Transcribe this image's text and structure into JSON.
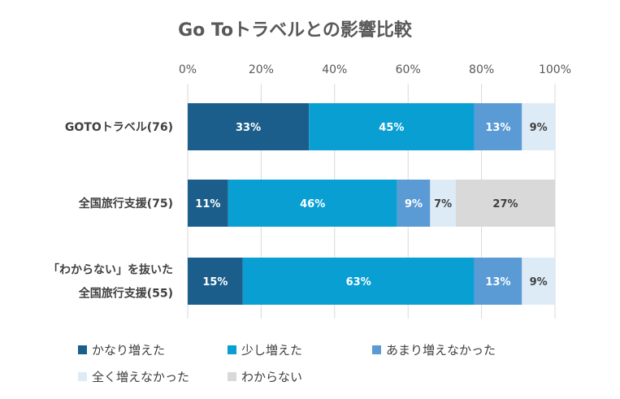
{
  "chart_data": {
    "type": "bar",
    "orientation": "horizontal",
    "stacked": true,
    "title": "Go Toトラベルとの影響比較",
    "xlabel": "",
    "ylabel": "",
    "xlim": [
      0,
      100
    ],
    "x_ticks": [
      "0%",
      "20%",
      "40%",
      "60%",
      "80%",
      "100%"
    ],
    "grid": true,
    "legend_position": "bottom",
    "categories": [
      [
        "GOTOトラベル(76)"
      ],
      [
        "全国旅行支援(75)"
      ],
      [
        "「わからない」を抜いた",
        "全国旅行支援(55)"
      ]
    ],
    "series": [
      {
        "name": "かなり増えた",
        "color": "#1b5e8c",
        "label_color": "#ffffff",
        "values": [
          33,
          11,
          15
        ]
      },
      {
        "name": "少し増えた",
        "color": "#0a9fd3",
        "label_color": "#ffffff",
        "values": [
          45,
          46,
          63
        ]
      },
      {
        "name": "あまり増えなかった",
        "color": "#5b9bd5",
        "label_color": "#ffffff",
        "values": [
          13,
          9,
          13
        ]
      },
      {
        "name": "全く増えなかった",
        "color": "#ddebf7",
        "label_color": "#404040",
        "values": [
          9,
          7,
          9
        ]
      },
      {
        "name": "わからない",
        "color": "#d9d9d9",
        "label_color": "#404040",
        "values": [
          0,
          27,
          0
        ]
      }
    ]
  }
}
